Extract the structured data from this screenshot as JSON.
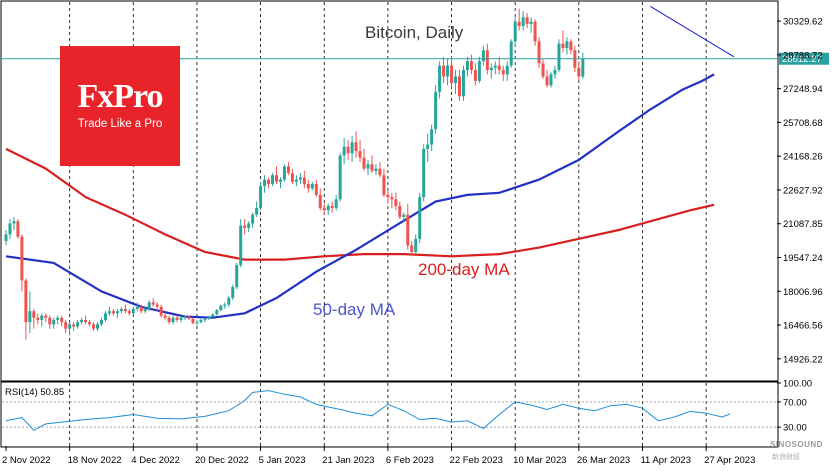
{
  "chart_data": {
    "type": "candlestick",
    "title": "Bitcoin, Daily",
    "y_ticks": [
      30329.62,
      28788.72,
      27248.94,
      25708.68,
      24168.26,
      22627.92,
      21087.85,
      19547.24,
      18006.96,
      16466.56,
      14926.22
    ],
    "ylim": [
      13960,
      31200
    ],
    "current_price_label": "28612.27",
    "current_price": 28612.27,
    "x_tick_labels": [
      "2 Nov 2022",
      "18 Nov 2022",
      "4 Dec 2022",
      "20 Dec 2022",
      "5 Jan 2023",
      "21 Jan 2023",
      "6 Feb 2023",
      "22 Feb 2023",
      "10 Mar 2023",
      "26 Mar 2023",
      "11 Apr 2023",
      "27 Apr 2023"
    ],
    "x_tick_days": [
      0,
      16,
      32,
      48,
      64,
      80,
      96,
      112,
      128,
      144,
      160,
      176
    ],
    "colors": {
      "up": "#26a69a",
      "down": "#ef5350",
      "ma50": "#2230c4",
      "ma200": "#d81e1e",
      "trendline": "#1a1ec8",
      "price_line": "#2aa1a1",
      "grid": "#000000"
    },
    "annotations": {
      "ma200_label": "200-day MA",
      "ma50_label": "50-day MA"
    },
    "trendline": [
      [
        162,
        31000
      ],
      [
        183,
        28700
      ]
    ],
    "candles": [
      [
        20300,
        20800,
        20100,
        20600
      ],
      [
        20600,
        21300,
        20400,
        21100
      ],
      [
        21100,
        21400,
        20800,
        21200
      ],
      [
        21200,
        21300,
        20400,
        20500
      ],
      [
        20500,
        20600,
        18000,
        18500
      ],
      [
        18500,
        18600,
        15800,
        16600
      ],
      [
        16600,
        18000,
        16100,
        17100
      ],
      [
        17100,
        17200,
        16300,
        16800
      ],
      [
        16800,
        17000,
        16500,
        16700
      ],
      [
        16700,
        17000,
        16400,
        16900
      ],
      [
        16900,
        17000,
        16600,
        16800
      ],
      [
        16800,
        16900,
        16300,
        16500
      ],
      [
        16500,
        16800,
        16300,
        16700
      ],
      [
        16700,
        16900,
        16500,
        16800
      ],
      [
        16800,
        16900,
        16400,
        16600
      ],
      [
        16600,
        16700,
        16100,
        16300
      ],
      [
        16300,
        16600,
        16000,
        16500
      ],
      [
        16500,
        16600,
        16200,
        16400
      ],
      [
        16400,
        16700,
        16300,
        16600
      ],
      [
        16600,
        16800,
        16500,
        16700
      ],
      [
        16700,
        16900,
        16500,
        16600
      ],
      [
        16600,
        16700,
        16400,
        16500
      ],
      [
        16500,
        16600,
        16200,
        16300
      ],
      [
        16300,
        16600,
        16200,
        16500
      ],
      [
        16500,
        16800,
        16400,
        16700
      ],
      [
        16700,
        17100,
        16600,
        17000
      ],
      [
        17000,
        17300,
        16900,
        17100
      ],
      [
        17100,
        17200,
        16900,
        17000
      ],
      [
        17000,
        17200,
        16800,
        17100
      ],
      [
        17100,
        17300,
        17000,
        17200
      ],
      [
        17200,
        17400,
        17000,
        17100
      ],
      [
        17100,
        17200,
        16900,
        17000
      ],
      [
        17000,
        17300,
        16900,
        17200
      ],
      [
        17200,
        17500,
        17100,
        17300
      ],
      [
        17300,
        17400,
        17000,
        17100
      ],
      [
        17100,
        17300,
        17000,
        17200
      ],
      [
        17200,
        17600,
        17100,
        17500
      ],
      [
        17500,
        17700,
        17300,
        17400
      ],
      [
        17400,
        17500,
        17100,
        17300
      ],
      [
        17300,
        17400,
        16800,
        16900
      ],
      [
        16900,
        17000,
        16700,
        16800
      ],
      [
        16800,
        16900,
        16500,
        16600
      ],
      [
        16600,
        16900,
        16500,
        16800
      ],
      [
        16800,
        16900,
        16600,
        16700
      ],
      [
        16700,
        16900,
        16600,
        16800
      ],
      [
        16800,
        16900,
        16700,
        16850
      ],
      [
        16850,
        16900,
        16700,
        16750
      ],
      [
        16750,
        16800,
        16500,
        16550
      ],
      [
        16550,
        16700,
        16450,
        16600
      ],
      [
        16600,
        16750,
        16550,
        16700
      ],
      [
        16700,
        16800,
        16600,
        16750
      ],
      [
        16750,
        16900,
        16700,
        16850
      ],
      [
        16850,
        17000,
        16800,
        16950
      ],
      [
        16950,
        17200,
        16900,
        17150
      ],
      [
        17150,
        17400,
        17100,
        17350
      ],
      [
        17350,
        17500,
        17200,
        17400
      ],
      [
        17400,
        17800,
        17300,
        17700
      ],
      [
        17700,
        18300,
        17600,
        18200
      ],
      [
        18200,
        19300,
        18100,
        19200
      ],
      [
        19200,
        21300,
        19100,
        21000
      ],
      [
        21000,
        21300,
        20600,
        20900
      ],
      [
        20900,
        21200,
        20700,
        21100
      ],
      [
        21100,
        21600,
        20900,
        21500
      ],
      [
        21500,
        22100,
        21400,
        21800
      ],
      [
        21800,
        23000,
        21700,
        22800
      ],
      [
        22800,
        23300,
        22500,
        23100
      ],
      [
        23100,
        23200,
        22700,
        22900
      ],
      [
        22900,
        23400,
        22800,
        23300
      ],
      [
        23300,
        23700,
        22900,
        23000
      ],
      [
        23000,
        23200,
        22700,
        23100
      ],
      [
        23100,
        23800,
        23000,
        23700
      ],
      [
        23700,
        23900,
        23300,
        23400
      ],
      [
        23400,
        23600,
        22900,
        23000
      ],
      [
        23000,
        23300,
        22800,
        23100
      ],
      [
        23100,
        23400,
        22900,
        23200
      ],
      [
        23200,
        23500,
        22700,
        22900
      ],
      [
        22900,
        23100,
        22500,
        22700
      ],
      [
        22700,
        23000,
        22600,
        22900
      ],
      [
        22900,
        23100,
        22300,
        22400
      ],
      [
        22400,
        22700,
        21700,
        21800
      ],
      [
        21800,
        22000,
        21500,
        21700
      ],
      [
        21700,
        22000,
        21500,
        21900
      ],
      [
        21900,
        22100,
        21600,
        21800
      ],
      [
        21800,
        22400,
        21700,
        22200
      ],
      [
        22200,
        24300,
        22100,
        24200
      ],
      [
        24200,
        25000,
        23800,
        24600
      ],
      [
        24600,
        24900,
        24000,
        24300
      ],
      [
        24300,
        25100,
        23900,
        24800
      ],
      [
        24800,
        25300,
        24100,
        24400
      ],
      [
        24400,
        24900,
        23900,
        24100
      ],
      [
        24100,
        24500,
        23500,
        23600
      ],
      [
        23600,
        24000,
        23300,
        23800
      ],
      [
        23800,
        24200,
        23400,
        23500
      ],
      [
        23500,
        23800,
        23300,
        23600
      ],
      [
        23600,
        23900,
        23200,
        23300
      ],
      [
        23300,
        23600,
        22300,
        22400
      ],
      [
        22400,
        22600,
        22000,
        22300
      ],
      [
        22300,
        22500,
        21800,
        22200
      ],
      [
        22200,
        22500,
        21700,
        21900
      ],
      [
        21900,
        22100,
        21300,
        21400
      ],
      [
        21400,
        21600,
        21200,
        21500
      ],
      [
        21500,
        22000,
        19900,
        20100
      ],
      [
        20100,
        20300,
        19600,
        19800
      ],
      [
        19800,
        20600,
        19700,
        20400
      ],
      [
        20400,
        22500,
        20200,
        22300
      ],
      [
        22300,
        24700,
        22100,
        24500
      ],
      [
        24500,
        25200,
        23900,
        24700
      ],
      [
        24700,
        25600,
        24400,
        25400
      ],
      [
        25400,
        27400,
        25200,
        27100
      ],
      [
        27100,
        28500,
        26800,
        28300
      ],
      [
        28300,
        28700,
        27500,
        27800
      ],
      [
        27800,
        28600,
        27400,
        28300
      ],
      [
        28300,
        28700,
        27300,
        27500
      ],
      [
        27500,
        28100,
        27000,
        27800
      ],
      [
        27800,
        28100,
        26700,
        26900
      ],
      [
        26900,
        28300,
        26700,
        28100
      ],
      [
        28100,
        28700,
        27800,
        28500
      ],
      [
        28500,
        28800,
        27900,
        28100
      ],
      [
        28100,
        28400,
        27400,
        27600
      ],
      [
        27600,
        28700,
        27500,
        28500
      ],
      [
        28500,
        29200,
        28300,
        29000
      ],
      [
        29000,
        29300,
        27900,
        28100
      ],
      [
        28100,
        28400,
        27700,
        28200
      ],
      [
        28200,
        28500,
        27900,
        28300
      ],
      [
        28300,
        28700,
        27900,
        28100
      ],
      [
        28100,
        28300,
        27600,
        27900
      ],
      [
        27900,
        28500,
        27600,
        28300
      ],
      [
        28300,
        29500,
        28200,
        29400
      ],
      [
        29400,
        30500,
        29200,
        30300
      ],
      [
        30300,
        30900,
        29900,
        30100
      ],
      [
        30100,
        30800,
        29900,
        30500
      ],
      [
        30500,
        30700,
        30000,
        30200
      ],
      [
        30200,
        30500,
        29800,
        30300
      ],
      [
        30300,
        30400,
        29200,
        29400
      ],
      [
        29400,
        29600,
        28200,
        28400
      ],
      [
        28400,
        28600,
        27700,
        27800
      ],
      [
        27800,
        28100,
        27300,
        27400
      ],
      [
        27400,
        28000,
        27300,
        27900
      ],
      [
        27900,
        28300,
        27700,
        28100
      ],
      [
        28100,
        29500,
        28000,
        29300
      ],
      [
        29300,
        29900,
        28900,
        29100
      ],
      [
        29100,
        29600,
        28800,
        29400
      ],
      [
        29400,
        29500,
        28800,
        29000
      ],
      [
        29000,
        29200,
        28000,
        28200
      ],
      [
        28200,
        28500,
        27600,
        27800
      ],
      [
        27800,
        28900,
        27700,
        28600
      ]
    ],
    "ma50_points": [
      [
        0,
        19600
      ],
      [
        12,
        19300
      ],
      [
        24,
        18000
      ],
      [
        34,
        17300
      ],
      [
        40,
        17050
      ],
      [
        45,
        16850
      ],
      [
        52,
        16800
      ],
      [
        60,
        17000
      ],
      [
        68,
        17700
      ],
      [
        78,
        18900
      ],
      [
        88,
        19900
      ],
      [
        98,
        21000
      ],
      [
        108,
        22100
      ],
      [
        116,
        22400
      ],
      [
        124,
        22500
      ],
      [
        134,
        23100
      ],
      [
        144,
        24000
      ],
      [
        154,
        25300
      ],
      [
        162,
        26300
      ],
      [
        170,
        27200
      ],
      [
        175,
        27600
      ],
      [
        178,
        27900
      ]
    ],
    "ma200_points": [
      [
        0,
        24500
      ],
      [
        10,
        23600
      ],
      [
        20,
        22300
      ],
      [
        30,
        21500
      ],
      [
        40,
        20600
      ],
      [
        50,
        19800
      ],
      [
        60,
        19450
      ],
      [
        70,
        19450
      ],
      [
        80,
        19600
      ],
      [
        90,
        19700
      ],
      [
        100,
        19700
      ],
      [
        112,
        19600
      ],
      [
        124,
        19700
      ],
      [
        134,
        20000
      ],
      [
        144,
        20400
      ],
      [
        154,
        20800
      ],
      [
        164,
        21300
      ],
      [
        172,
        21700
      ],
      [
        178,
        21950
      ]
    ],
    "rsi": {
      "label": "RSI(14) 50.85",
      "y_ticks": [
        100.0,
        70.0,
        30.0
      ],
      "ylim": [
        0,
        100
      ],
      "levels": [
        70,
        30
      ],
      "points": [
        [
          0,
          40
        ],
        [
          4,
          45
        ],
        [
          7,
          25
        ],
        [
          10,
          35
        ],
        [
          14,
          38
        ],
        [
          20,
          42
        ],
        [
          26,
          45
        ],
        [
          32,
          50
        ],
        [
          38,
          44
        ],
        [
          44,
          43
        ],
        [
          50,
          47
        ],
        [
          56,
          56
        ],
        [
          60,
          72
        ],
        [
          62,
          85
        ],
        [
          66,
          88
        ],
        [
          70,
          82
        ],
        [
          74,
          78
        ],
        [
          78,
          66
        ],
        [
          84,
          58
        ],
        [
          88,
          52
        ],
        [
          92,
          48
        ],
        [
          96,
          66
        ],
        [
          100,
          56
        ],
        [
          104,
          42
        ],
        [
          108,
          44
        ],
        [
          112,
          38
        ],
        [
          116,
          40
        ],
        [
          120,
          28
        ],
        [
          124,
          50
        ],
        [
          128,
          70
        ],
        [
          132,
          65
        ],
        [
          136,
          58
        ],
        [
          140,
          66
        ],
        [
          144,
          60
        ],
        [
          148,
          56
        ],
        [
          152,
          64
        ],
        [
          156,
          66
        ],
        [
          160,
          60
        ],
        [
          164,
          40
        ],
        [
          168,
          46
        ],
        [
          172,
          55
        ],
        [
          176,
          52
        ],
        [
          180,
          46
        ],
        [
          182,
          50.85
        ]
      ]
    }
  },
  "logo": {
    "brand": "FxPro",
    "tagline": "Trade Like a Pro"
  },
  "watermark": {
    "text": "SINOSOUND",
    "sub": "新浪財經"
  }
}
